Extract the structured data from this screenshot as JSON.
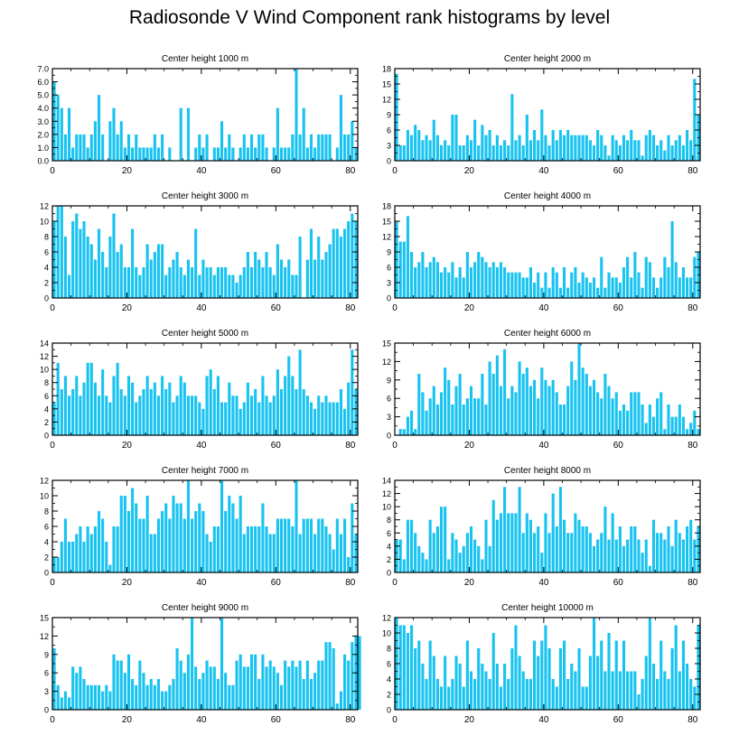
{
  "title": "Radiosonde V Wind Component rank histograms by level",
  "colors": {
    "bar": "#19c3f0",
    "axis": "#000000",
    "background": "#ffffff"
  },
  "chart_data": [
    {
      "type": "bar",
      "title": "Center height 1000 m",
      "xlabel": "",
      "ylabel": "",
      "xlim": [
        0,
        82
      ],
      "ylim": [
        0,
        7
      ],
      "xticks": [
        0,
        20,
        40,
        60,
        80
      ],
      "yticks": [
        0,
        1,
        2,
        3,
        4,
        5,
        6,
        7
      ],
      "ytick_labels": [
        "0.0",
        "1.0",
        "2.0",
        "3.0",
        "4.0",
        "5.0",
        "6.0",
        "7.0"
      ],
      "values": [
        6,
        5,
        4,
        2,
        4,
        1,
        2,
        2,
        2,
        1,
        2,
        3,
        5,
        2,
        0,
        3,
        4,
        2,
        3,
        1,
        2,
        1,
        2,
        1,
        1,
        1,
        1,
        2,
        1,
        2,
        0,
        1,
        0,
        0,
        4,
        0,
        4,
        0,
        1,
        2,
        1,
        2,
        0,
        1,
        1,
        3,
        1,
        2,
        1,
        0,
        1,
        2,
        1,
        2,
        1,
        2,
        2,
        1,
        0,
        1,
        4,
        1,
        1,
        1,
        2,
        7,
        2,
        4,
        1,
        2,
        1,
        2,
        2,
        2,
        2,
        0,
        1,
        5,
        2,
        2,
        3,
        1
      ]
    },
    {
      "type": "bar",
      "title": "Center height 2000 m",
      "xlabel": "",
      "ylabel": "",
      "xlim": [
        0,
        82
      ],
      "ylim": [
        0,
        18
      ],
      "xticks": [
        0,
        20,
        40,
        60,
        80
      ],
      "yticks": [
        0,
        3,
        6,
        9,
        12,
        15,
        18
      ],
      "ytick_labels": [
        "0",
        "3",
        "6",
        "9",
        "12",
        "15",
        "18"
      ],
      "values": [
        17,
        3,
        3,
        6,
        5,
        7,
        6,
        4,
        5,
        4,
        8,
        5,
        3,
        4,
        3,
        9,
        9,
        3,
        3,
        5,
        4,
        8,
        3,
        7,
        5,
        6,
        3,
        5,
        3,
        4,
        3,
        13,
        4,
        5,
        3,
        9,
        4,
        6,
        4,
        10,
        5,
        3,
        6,
        4,
        6,
        5,
        6,
        5,
        5,
        5,
        5,
        5,
        4,
        3,
        6,
        5,
        3,
        1,
        5,
        4,
        3,
        5,
        4,
        6,
        4,
        4,
        1,
        5,
        6,
        5,
        3,
        4,
        2,
        5,
        3,
        4,
        5,
        3,
        6,
        4,
        16,
        9
      ]
    },
    {
      "type": "bar",
      "title": "Center height 3000 m",
      "xlabel": "",
      "ylabel": "",
      "xlim": [
        0,
        82
      ],
      "ylim": [
        0,
        12
      ],
      "xticks": [
        0,
        20,
        40,
        60,
        80
      ],
      "yticks": [
        0,
        2,
        4,
        6,
        8,
        10,
        12
      ],
      "ytick_labels": [
        "0",
        "2",
        "4",
        "6",
        "8",
        "10",
        "12"
      ],
      "values": [
        10,
        12,
        12,
        8,
        3,
        10,
        11,
        9,
        10,
        8,
        7,
        5,
        9,
        6,
        4,
        8,
        11,
        6,
        7,
        4,
        4,
        9,
        4,
        3,
        4,
        7,
        5,
        6,
        7,
        7,
        3,
        4,
        5,
        6,
        4,
        3,
        5,
        4,
        9,
        3,
        5,
        4,
        4,
        3,
        4,
        4,
        4,
        3,
        3,
        2,
        3,
        4,
        6,
        4,
        6,
        5,
        4,
        6,
        4,
        3,
        7,
        5,
        4,
        5,
        3,
        3,
        8,
        0,
        5,
        9,
        5,
        8,
        5,
        6,
        7,
        9,
        9,
        8,
        9,
        10,
        11,
        10
      ]
    },
    {
      "type": "bar",
      "title": "Center height 4000 m",
      "xlabel": "",
      "ylabel": "",
      "xlim": [
        0,
        82
      ],
      "ylim": [
        0,
        18
      ],
      "xticks": [
        0,
        20,
        40,
        60,
        80
      ],
      "yticks": [
        0,
        3,
        6,
        9,
        12,
        15,
        18
      ],
      "ytick_labels": [
        "0",
        "3",
        "6",
        "9",
        "12",
        "15",
        "18"
      ],
      "values": [
        15,
        11,
        11,
        16,
        9,
        6,
        7,
        9,
        6,
        7,
        8,
        7,
        5,
        6,
        5,
        7,
        4,
        6,
        4,
        9,
        6,
        7,
        9,
        8,
        7,
        6,
        7,
        6,
        7,
        6,
        5,
        5,
        5,
        5,
        4,
        4,
        6,
        3,
        5,
        2,
        5,
        2,
        6,
        5,
        2,
        6,
        2,
        5,
        6,
        3,
        5,
        4,
        3,
        4,
        2,
        8,
        2,
        5,
        4,
        4,
        3,
        6,
        8,
        4,
        9,
        5,
        2,
        8,
        7,
        4,
        2,
        4,
        8,
        6,
        15,
        7,
        4,
        6,
        4,
        4,
        8,
        9
      ]
    },
    {
      "type": "bar",
      "title": "Center height 5000 m",
      "xlabel": "",
      "ylabel": "",
      "xlim": [
        0,
        82
      ],
      "ylim": [
        0,
        14
      ],
      "xticks": [
        0,
        20,
        40,
        60,
        80
      ],
      "yticks": [
        0,
        2,
        4,
        6,
        8,
        10,
        12,
        14
      ],
      "ytick_labels": [
        "0",
        "2",
        "4",
        "6",
        "8",
        "10",
        "12",
        "14"
      ],
      "values": [
        5,
        11,
        7,
        9,
        6,
        7,
        9,
        6,
        8,
        11,
        11,
        8,
        6,
        10,
        6,
        5,
        9,
        11,
        7,
        6,
        9,
        8,
        5,
        6,
        7,
        9,
        7,
        8,
        6,
        9,
        7,
        8,
        5,
        6,
        9,
        8,
        6,
        6,
        6,
        5,
        4,
        9,
        10,
        7,
        9,
        5,
        5,
        8,
        6,
        6,
        4,
        5,
        8,
        6,
        7,
        5,
        9,
        6,
        5,
        6,
        10,
        7,
        9,
        12,
        9,
        7,
        13,
        7,
        6,
        5,
        4,
        6,
        5,
        6,
        5,
        5,
        5,
        7,
        4,
        8,
        13,
        7
      ]
    },
    {
      "type": "bar",
      "title": "Center height 6000 m",
      "xlabel": "",
      "ylabel": "",
      "xlim": [
        0,
        82
      ],
      "ylim": [
        0,
        15
      ],
      "xticks": [
        0,
        20,
        40,
        60,
        80
      ],
      "yticks": [
        0,
        3,
        6,
        9,
        12,
        15
      ],
      "ytick_labels": [
        "0",
        "3",
        "6",
        "9",
        "12",
        "15"
      ],
      "values": [
        0,
        1,
        1,
        3,
        4,
        1,
        10,
        7,
        4,
        6,
        8,
        5,
        7,
        11,
        9,
        5,
        8,
        10,
        5,
        6,
        8,
        6,
        6,
        10,
        5,
        12,
        10,
        13,
        8,
        14,
        6,
        8,
        7,
        12,
        10,
        11,
        8,
        9,
        6,
        11,
        9,
        8,
        9,
        7,
        5,
        5,
        8,
        12,
        9,
        15,
        11,
        10,
        8,
        9,
        7,
        6,
        10,
        8,
        6,
        7,
        4,
        5,
        4,
        7,
        7,
        7,
        5,
        2,
        5,
        3,
        6,
        7,
        1,
        5,
        3,
        3,
        5,
        3,
        1,
        2,
        4,
        1
      ]
    },
    {
      "type": "bar",
      "title": "Center height 7000 m",
      "xlabel": "",
      "ylabel": "",
      "xlim": [
        0,
        82
      ],
      "ylim": [
        0,
        12
      ],
      "xticks": [
        0,
        20,
        40,
        60,
        80
      ],
      "yticks": [
        0,
        2,
        4,
        6,
        8,
        10,
        12
      ],
      "ytick_labels": [
        "0",
        "2",
        "4",
        "6",
        "8",
        "10",
        "12"
      ],
      "values": [
        2,
        2,
        4,
        7,
        4,
        4,
        5,
        6,
        4,
        6,
        5,
        6,
        8,
        7,
        4,
        1,
        6,
        6,
        10,
        10,
        8,
        11,
        9,
        7,
        7,
        10,
        5,
        5,
        7,
        8,
        9,
        7,
        10,
        9,
        9,
        7,
        12,
        7,
        8,
        9,
        8,
        5,
        4,
        6,
        6,
        12,
        8,
        10,
        9,
        7,
        10,
        5,
        6,
        6,
        6,
        6,
        9,
        6,
        5,
        5,
        7,
        7,
        7,
        7,
        6,
        12,
        5,
        7,
        7,
        7,
        5,
        7,
        7,
        6,
        5,
        3,
        7,
        5,
        7,
        2,
        9,
        5
      ]
    },
    {
      "type": "bar",
      "title": "Center height 8000 m",
      "xlabel": "",
      "ylabel": "",
      "xlim": [
        0,
        82
      ],
      "ylim": [
        0,
        14
      ],
      "xticks": [
        0,
        20,
        40,
        60,
        80
      ],
      "yticks": [
        0,
        2,
        4,
        6,
        8,
        10,
        12,
        14
      ],
      "ytick_labels": [
        "0",
        "2",
        "4",
        "6",
        "8",
        "10",
        "12",
        "14"
      ],
      "values": [
        5,
        5,
        2,
        8,
        8,
        6,
        4,
        3,
        2,
        8,
        6,
        7,
        10,
        10,
        2,
        6,
        5,
        3,
        4,
        6,
        7,
        5,
        4,
        2,
        8,
        4,
        11,
        8,
        9,
        13,
        9,
        9,
        9,
        13,
        6,
        9,
        8,
        6,
        7,
        3,
        9,
        6,
        12,
        7,
        13,
        8,
        6,
        6,
        9,
        8,
        7,
        7,
        6,
        4,
        5,
        6,
        10,
        5,
        9,
        5,
        7,
        4,
        5,
        7,
        7,
        5,
        3,
        5,
        1,
        8,
        6,
        6,
        5,
        7,
        4,
        8,
        6,
        5,
        7,
        8,
        5,
        7
      ]
    },
    {
      "type": "bar",
      "title": "Center height 9000 m",
      "xlabel": "",
      "ylabel": "",
      "xlim": [
        0,
        82
      ],
      "ylim": [
        0,
        15
      ],
      "xticks": [
        0,
        20,
        40,
        60,
        80
      ],
      "yticks": [
        0,
        3,
        6,
        9,
        12,
        15
      ],
      "ytick_labels": [
        "0",
        "3",
        "6",
        "9",
        "12",
        "15"
      ],
      "values": [
        10,
        4,
        2,
        3,
        2,
        7,
        6,
        7,
        5,
        4,
        4,
        4,
        4,
        3,
        4,
        3,
        9,
        8,
        8,
        6,
        9,
        5,
        4,
        8,
        6,
        4,
        5,
        4,
        5,
        3,
        3,
        4,
        5,
        10,
        8,
        6,
        9,
        15,
        7,
        5,
        6,
        8,
        7,
        7,
        5,
        15,
        6,
        4,
        4,
        8,
        9,
        7,
        7,
        9,
        9,
        5,
        9,
        7,
        8,
        7,
        6,
        4,
        8,
        7,
        8,
        7,
        8,
        5,
        8,
        5,
        6,
        8,
        8,
        11,
        11,
        10,
        1,
        3,
        9,
        8,
        11,
        12,
        12
      ]
    },
    {
      "type": "bar",
      "title": "Center height 10000 m",
      "xlabel": "",
      "ylabel": "",
      "xlim": [
        0,
        82
      ],
      "ylim": [
        0,
        12
      ],
      "xticks": [
        0,
        20,
        40,
        60,
        80
      ],
      "yticks": [
        0,
        2,
        4,
        6,
        8,
        10,
        12
      ],
      "ytick_labels": [
        "0",
        "2",
        "4",
        "6",
        "8",
        "10",
        "12"
      ],
      "values": [
        12,
        11,
        11,
        10,
        11,
        8,
        9,
        6,
        4,
        9,
        7,
        4,
        3,
        7,
        3,
        4,
        7,
        6,
        3,
        9,
        5,
        4,
        8,
        6,
        5,
        4,
        10,
        6,
        3,
        6,
        4,
        8,
        11,
        7,
        5,
        4,
        4,
        9,
        7,
        9,
        11,
        8,
        4,
        3,
        8,
        9,
        4,
        6,
        5,
        8,
        3,
        3,
        7,
        12,
        7,
        9,
        5,
        10,
        5,
        9,
        5,
        9,
        5,
        5,
        5,
        2,
        4,
        7,
        12,
        6,
        4,
        9,
        5,
        4,
        8,
        11,
        5,
        9,
        6,
        4,
        3,
        11
      ]
    }
  ]
}
